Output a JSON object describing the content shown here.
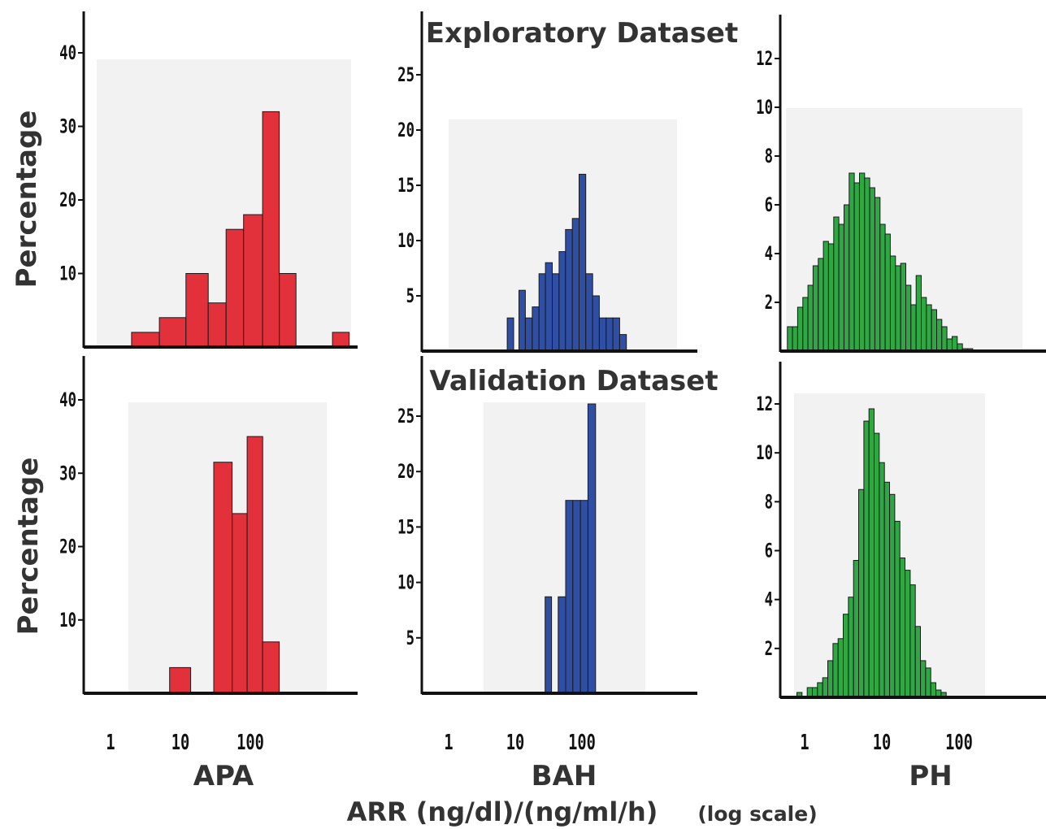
{
  "figure": {
    "row_titles": [
      "Exploratory Dataset",
      "Validation Dataset"
    ],
    "ylabel": "Percentage",
    "group_labels": [
      "APA",
      "BAH",
      "PH"
    ],
    "xlabel_main": "ARR (ng/dl)/(ng/ml/h)",
    "xlabel_note": "(log scale)",
    "colors": {
      "APA": "#e2313b",
      "BAH": "#2f4fa4",
      "PH": "#2ea843",
      "panel_bg": "#f2f2f2",
      "axis": "#111111"
    }
  },
  "chart_data": [
    {
      "type": "bar",
      "group": "APA",
      "dataset": "Exploratory Dataset",
      "xscale": "log",
      "xlim": [
        0.5,
        1000
      ],
      "ylim": [
        0,
        42
      ],
      "xticks": [
        "1",
        "10",
        "100"
      ],
      "yticks": [
        "10",
        "20",
        "30",
        "40"
      ],
      "bins": [
        {
          "x0": 2,
          "x1": 5,
          "y": 2
        },
        {
          "x0": 5,
          "x1": 12,
          "y": 4
        },
        {
          "x0": 12,
          "x1": 25,
          "y": 10
        },
        {
          "x0": 25,
          "x1": 45,
          "y": 6
        },
        {
          "x0": 45,
          "x1": 80,
          "y": 16
        },
        {
          "x0": 80,
          "x1": 150,
          "y": 18
        },
        {
          "x0": 150,
          "x1": 260,
          "y": 32
        },
        {
          "x0": 260,
          "x1": 450,
          "y": 10
        },
        {
          "x0": 1500,
          "x1": 2600,
          "y": 2
        }
      ]
    },
    {
      "type": "bar",
      "group": "BAH",
      "dataset": "Exploratory Dataset",
      "xscale": "log",
      "xlim": [
        0.5,
        1000
      ],
      "ylim": [
        0,
        28
      ],
      "xticks": [
        "1",
        "10",
        "100"
      ],
      "yticks": [
        "5",
        "10",
        "15",
        "20",
        "25"
      ],
      "bins": [
        {
          "x0": 8,
          "x1": 10,
          "y": 3
        },
        {
          "x0": 12,
          "x1": 15,
          "y": 5.5
        },
        {
          "x0": 15,
          "x1": 19,
          "y": 3
        },
        {
          "x0": 19,
          "x1": 24,
          "y": 4
        },
        {
          "x0": 24,
          "x1": 30,
          "y": 7
        },
        {
          "x0": 30,
          "x1": 38,
          "y": 8
        },
        {
          "x0": 38,
          "x1": 48,
          "y": 7
        },
        {
          "x0": 48,
          "x1": 60,
          "y": 9
        },
        {
          "x0": 60,
          "x1": 76,
          "y": 11
        },
        {
          "x0": 76,
          "x1": 96,
          "y": 12
        },
        {
          "x0": 96,
          "x1": 121,
          "y": 16
        },
        {
          "x0": 121,
          "x1": 153,
          "y": 7
        },
        {
          "x0": 153,
          "x1": 193,
          "y": 5
        },
        {
          "x0": 193,
          "x1": 244,
          "y": 3
        },
        {
          "x0": 244,
          "x1": 308,
          "y": 3
        },
        {
          "x0": 308,
          "x1": 389,
          "y": 3
        },
        {
          "x0": 389,
          "x1": 491,
          "y": 1.5
        }
      ]
    },
    {
      "type": "bar",
      "group": "PH",
      "dataset": "Exploratory Dataset",
      "xscale": "log",
      "xlim": [
        0.5,
        1000
      ],
      "ylim": [
        0,
        13
      ],
      "xticks": [
        "1",
        "10",
        "100"
      ],
      "yticks": [
        "2",
        "4",
        "6",
        "8",
        "10",
        "12"
      ],
      "bin_edges_log10": {
        "start": -0.15,
        "width": 0.0667
      },
      "values": [
        1,
        1,
        1.8,
        2.2,
        2.7,
        3.5,
        3.8,
        4.5,
        4.4,
        5.5,
        5.2,
        6,
        7.3,
        6.9,
        7.3,
        7.1,
        6.7,
        6.3,
        5.2,
        4.8,
        3.9,
        3.5,
        3.6,
        2.7,
        1.9,
        3.1,
        2.2,
        1.9,
        1.7,
        1.3,
        1,
        0.5,
        0.6,
        0.3,
        0.1,
        0.1
      ]
    },
    {
      "type": "bar",
      "group": "APA",
      "dataset": "Validation Dataset",
      "xscale": "log",
      "xlim": [
        0.5,
        1000
      ],
      "ylim": [
        0,
        42
      ],
      "xticks": [
        "1",
        "10",
        "100"
      ],
      "yticks": [
        "10",
        "20",
        "30",
        "40"
      ],
      "bins": [
        {
          "x0": 7,
          "x1": 14,
          "y": 3.5
        },
        {
          "x0": 30,
          "x1": 55,
          "y": 31.5
        },
        {
          "x0": 55,
          "x1": 90,
          "y": 24.5
        },
        {
          "x0": 90,
          "x1": 150,
          "y": 35
        },
        {
          "x0": 150,
          "x1": 260,
          "y": 7
        }
      ]
    },
    {
      "type": "bar",
      "group": "BAH",
      "dataset": "Validation Dataset",
      "xscale": "log",
      "xlim": [
        0.5,
        1000
      ],
      "ylim": [
        0,
        28
      ],
      "xticks": [
        "1",
        "10",
        "100"
      ],
      "yticks": [
        "5",
        "10",
        "15",
        "20",
        "25"
      ],
      "bins": [
        {
          "x0": 28,
          "x1": 35,
          "y": 8.7
        },
        {
          "x0": 44,
          "x1": 57,
          "y": 8.7
        },
        {
          "x0": 57,
          "x1": 73,
          "y": 17.4
        },
        {
          "x0": 73,
          "x1": 95,
          "y": 17.4
        },
        {
          "x0": 95,
          "x1": 123,
          "y": 17.4
        },
        {
          "x0": 123,
          "x1": 160,
          "y": 26.1
        }
      ]
    },
    {
      "type": "bar",
      "group": "PH",
      "dataset": "Validation Dataset",
      "xscale": "log",
      "xlim": [
        0.5,
        1000
      ],
      "ylim": [
        0,
        13
      ],
      "xticks": [
        "1",
        "10",
        "100"
      ],
      "yticks": [
        "2",
        "4",
        "6",
        "8",
        "10",
        "12"
      ],
      "bin_edges_log10": {
        "start": -0.1,
        "width": 0.0667
      },
      "values": [
        0.2,
        0,
        0.4,
        0.4,
        0.6,
        0.8,
        1.5,
        2.2,
        2.4,
        3.4,
        4.1,
        5.6,
        8.5,
        11.3,
        11.8,
        10.8,
        9.6,
        8.8,
        8.3,
        7.2,
        5.7,
        5.2,
        4.6,
        2.9,
        1.5,
        1.2,
        0.6,
        0.3,
        0.2
      ]
    }
  ]
}
